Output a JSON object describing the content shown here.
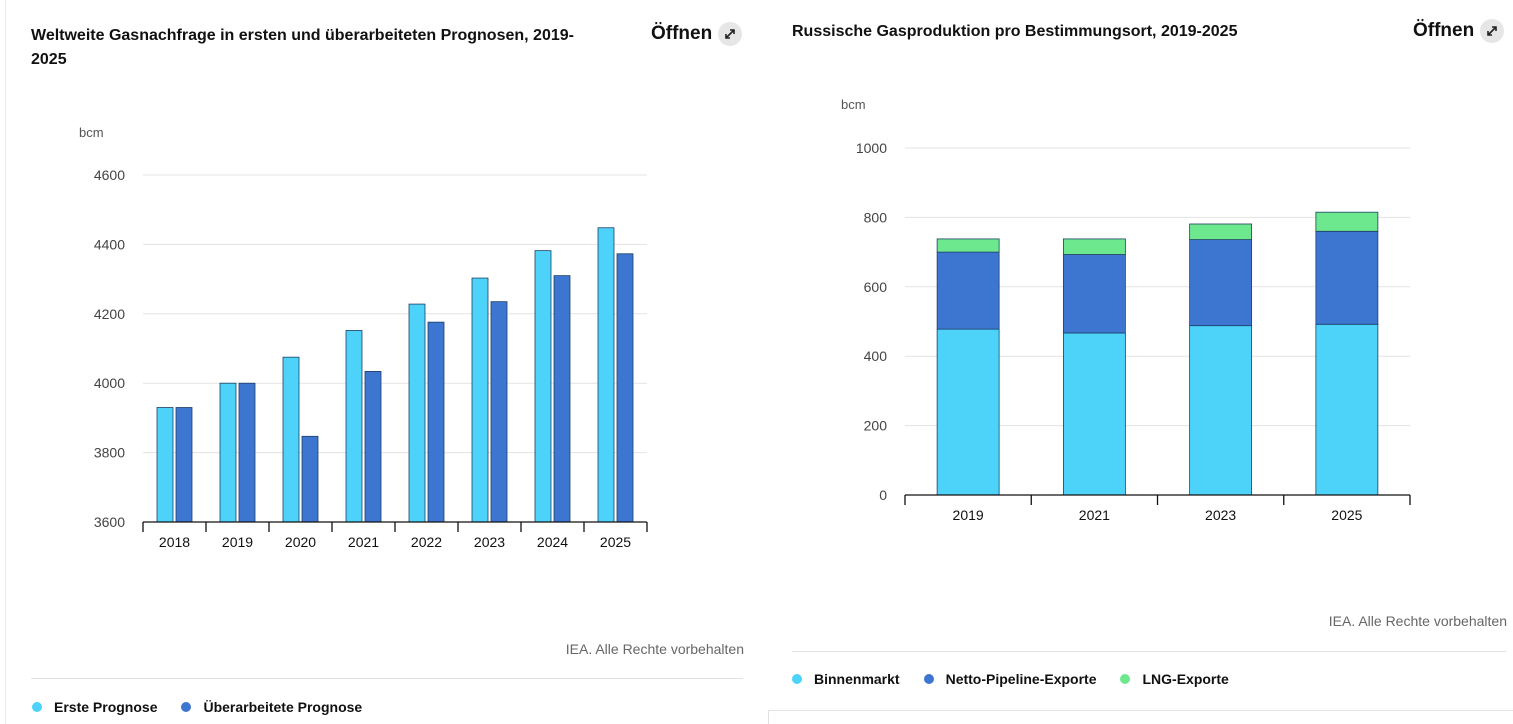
{
  "left": {
    "title": "Weltweite Gasnachfrage in ersten und überarbeiteten Prognosen, 2019-2025",
    "open_label": "Öffnen",
    "open_icon": "expand-arrows-icon",
    "credit": "IEA. Alle Rechte vorbehalten"
  },
  "right": {
    "title": "Russische Gasproduktion pro Bestimmungsort, 2019-2025",
    "open_label": "Öffnen",
    "open_icon": "expand-arrows-icon",
    "credit": "IEA. Alle Rechte vorbehalten"
  },
  "chart_data": [
    {
      "type": "bar",
      "title": "Weltweite Gasnachfrage in ersten und überarbeiteten Prognosen, 2019-2025",
      "ylabel": "bcm",
      "xlabel": "",
      "ylim": [
        3600,
        4600
      ],
      "yticks": [
        3600,
        3800,
        4000,
        4200,
        4400,
        4600
      ],
      "grid": true,
      "legend_position": "bottom-left",
      "categories": [
        "2018",
        "2019",
        "2020",
        "2021",
        "2022",
        "2023",
        "2024",
        "2025"
      ],
      "series": [
        {
          "name": "Erste Prognose",
          "color": "#4dd2f9",
          "values": [
            3930,
            4000,
            4075,
            4152,
            4228,
            4303,
            4382,
            4448
          ]
        },
        {
          "name": "Überarbeitete Prognose",
          "color": "#3d76d1",
          "values": [
            3930,
            4000,
            3847,
            4034,
            4176,
            4235,
            4310,
            4373
          ]
        }
      ]
    },
    {
      "type": "bar",
      "stacked": true,
      "title": "Russische Gasproduktion pro Bestimmungsort, 2019-2025",
      "ylabel": "bcm",
      "xlabel": "",
      "ylim": [
        0,
        1000
      ],
      "yticks": [
        0,
        200,
        400,
        600,
        800,
        1000
      ],
      "grid": true,
      "legend_position": "bottom-left",
      "categories": [
        "2019",
        "2021",
        "2023",
        "2025"
      ],
      "series": [
        {
          "name": "Binnenmarkt",
          "color": "#4dd2f9",
          "values": [
            478,
            467,
            488,
            492
          ]
        },
        {
          "name": "Netto-Pipeline-Exporte",
          "color": "#3d76d1",
          "values": [
            222,
            226,
            248,
            268
          ]
        },
        {
          "name": "LNG-Exporte",
          "color": "#6de88e",
          "values": [
            38,
            45,
            45,
            55
          ]
        }
      ]
    }
  ]
}
